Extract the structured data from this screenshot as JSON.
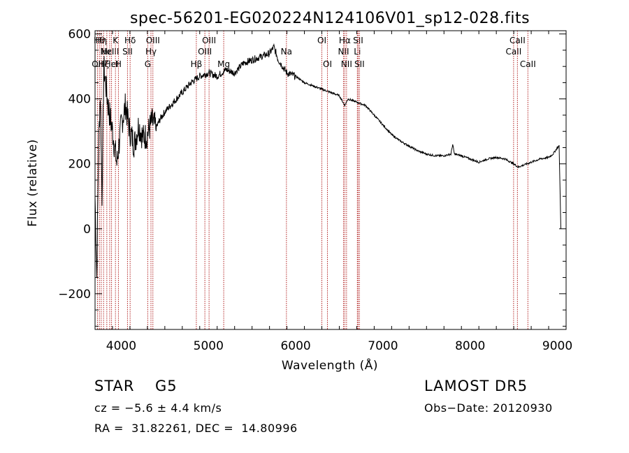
{
  "chart_data": {
    "type": "line",
    "title": "spec-56201-EG020224N124106V01_sp12-028.fits",
    "xlabel": "Wavelength (Å)",
    "ylabel": "Flux (relative)",
    "xlim": [
      3700,
      9100
    ],
    "ylim": [
      -310,
      610
    ],
    "xticks": [
      4000,
      5000,
      6000,
      7000,
      8000,
      9000
    ],
    "yticks": [
      -200,
      0,
      200,
      400,
      600
    ],
    "grid": false,
    "line_color": "#000000",
    "marker_color": "#b22222",
    "series": [
      {
        "values_note_x": "wavelength",
        "x": [
          3700,
          3720,
          3740,
          3760,
          3780,
          3800,
          3850,
          3900,
          3950,
          4000,
          4050,
          4100,
          4150,
          4200,
          4250,
          4300,
          4350,
          4400,
          4450,
          4500,
          4600,
          4700,
          4800,
          4900,
          5000,
          5100,
          5200,
          5300,
          5400,
          5500,
          5600,
          5700,
          5750,
          5800,
          5850,
          5900,
          6000,
          6100,
          6200,
          6300,
          6400,
          6500,
          6563,
          6600,
          6700,
          6800,
          6900,
          7000,
          7100,
          7200,
          7300,
          7400,
          7500,
          7600,
          7700,
          7780,
          7800,
          7820,
          7900,
          8000,
          8100,
          8200,
          8300,
          8400,
          8500,
          8550,
          8600,
          8700,
          8800,
          8900,
          8950,
          9000,
          9020,
          9040
        ],
        "y": [
          100,
          -150,
          250,
          420,
          100,
          500,
          380,
          300,
          200,
          320,
          380,
          300,
          260,
          320,
          280,
          290,
          330,
          310,
          340,
          360,
          390,
          420,
          450,
          470,
          480,
          470,
          490,
          480,
          510,
          520,
          530,
          540,
          560,
          520,
          500,
          480,
          470,
          450,
          440,
          430,
          420,
          410,
          380,
          400,
          390,
          380,
          350,
          320,
          290,
          270,
          255,
          240,
          230,
          225,
          225,
          230,
          260,
          230,
          225,
          215,
          205,
          215,
          220,
          215,
          200,
          190,
          195,
          205,
          215,
          220,
          230,
          250,
          255,
          0
        ]
      }
    ],
    "line_markers": [
      {
        "x": 3728,
        "label": "OII",
        "row": 3
      },
      {
        "x": 3750,
        "label": "Hθ",
        "row": 1
      },
      {
        "x": 3771,
        "label": "Hη",
        "row": 1
      },
      {
        "x": 3798,
        "label": "Hζ",
        "row": 3
      },
      {
        "x": 3835,
        "label": "Hε",
        "row": 2
      },
      {
        "x": 3868,
        "label": "NeIII",
        "row": 2
      },
      {
        "x": 3889,
        "label": "HeI",
        "row": 3
      },
      {
        "x": 3934,
        "label": "K",
        "row": 1
      },
      {
        "x": 3968,
        "label": "H",
        "row": 3
      },
      {
        "x": 4072,
        "label": "SII",
        "row": 2
      },
      {
        "x": 4102,
        "label": "Hδ",
        "row": 1
      },
      {
        "x": 4304,
        "label": "G",
        "row": 3
      },
      {
        "x": 4341,
        "label": "Hγ",
        "row": 2
      },
      {
        "x": 4363,
        "label": "OIII",
        "row": 1
      },
      {
        "x": 4861,
        "label": "Hβ",
        "row": 3
      },
      {
        "x": 4959,
        "label": "OIII",
        "row": 2
      },
      {
        "x": 5007,
        "label": "OIII",
        "row": 1
      },
      {
        "x": 5175,
        "label": "Mg",
        "row": 3
      },
      {
        "x": 5894,
        "label": "Na",
        "row": 2
      },
      {
        "x": 6300,
        "label": "OI",
        "row": 1
      },
      {
        "x": 6364,
        "label": "OI",
        "row": 3
      },
      {
        "x": 6548,
        "label": "NII",
        "row": 2
      },
      {
        "x": 6563,
        "label": "Hα",
        "row": 1
      },
      {
        "x": 6583,
        "label": "NII",
        "row": 3
      },
      {
        "x": 6707,
        "label": "Li",
        "row": 2
      },
      {
        "x": 6716,
        "label": "SII",
        "row": 1
      },
      {
        "x": 6731,
        "label": "SII",
        "row": 3
      },
      {
        "x": 8498,
        "label": "CaII",
        "row": 2
      },
      {
        "x": 8542,
        "label": "CaII",
        "row": 1
      },
      {
        "x": 8662,
        "label": "CaII",
        "row": 3
      }
    ]
  },
  "info": {
    "class": "STAR",
    "subclass": "G5",
    "survey": "LAMOST DR5",
    "cz": "cz = −5.6 ± 4.4 km/s",
    "obs_date": "Obs−Date: 20120930",
    "coords": "RA =  31.82261, DEC =  14.80996"
  }
}
